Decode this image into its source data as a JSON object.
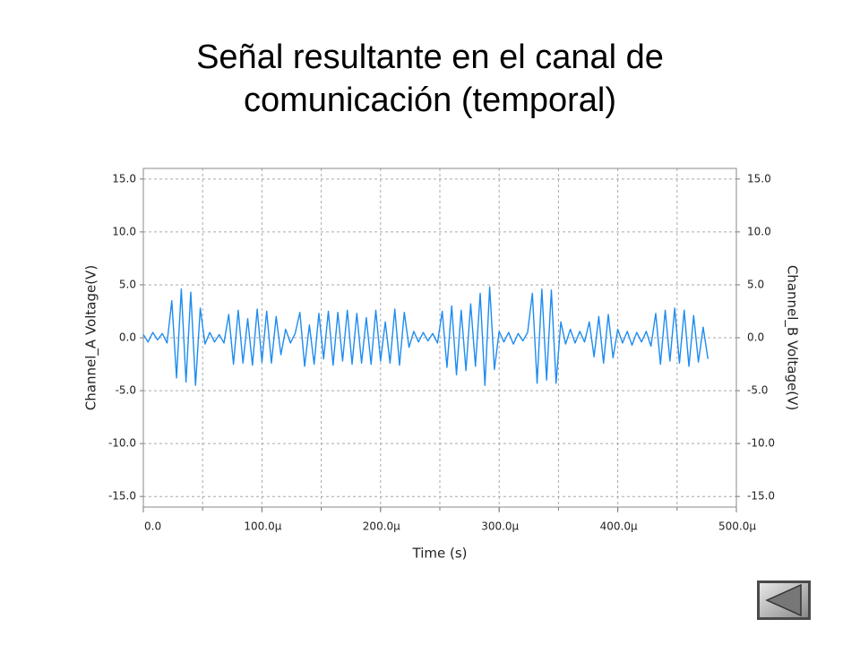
{
  "chart_data": {
    "type": "line",
    "title": [
      "Señal resultante en el canal de",
      "comunicación (temporal)"
    ],
    "x_label": "Time (s)",
    "y_label": "Channel_A Voltage(V)",
    "y2_label": "Channel_B Voltage(V)",
    "xlim": [
      0,
      0.0005
    ],
    "xticks": [
      {
        "value": 0,
        "label": "0.0"
      },
      {
        "value": 0.0001,
        "label": "100.0µ"
      },
      {
        "value": 0.0002,
        "label": "200.0µ"
      },
      {
        "value": 0.0003,
        "label": "300.0µ"
      },
      {
        "value": 0.0004,
        "label": "400.0µ"
      },
      {
        "value": 0.0005,
        "label": "500.0µ"
      }
    ],
    "xgrid": [
      5e-05,
      0.0001,
      0.00015,
      0.0002,
      0.00025,
      0.0003,
      0.00035,
      0.0004,
      0.00045
    ],
    "ylim": [
      -16,
      16
    ],
    "yticks": [
      {
        "value": 15,
        "label": "15.0"
      },
      {
        "value": 10,
        "label": "10.0"
      },
      {
        "value": 5,
        "label": "5.0"
      },
      {
        "value": 0,
        "label": "0.0"
      },
      {
        "value": -5,
        "label": "-5.0"
      },
      {
        "value": -10,
        "label": "-10.0"
      },
      {
        "value": -15,
        "label": "-15.0"
      }
    ],
    "y2lim": [
      -16,
      16
    ],
    "y2ticks": [
      {
        "value": 15,
        "label": "15.0"
      },
      {
        "value": 10,
        "label": "10.0"
      },
      {
        "value": 5,
        "label": "5.0"
      },
      {
        "value": 0,
        "label": "0.0"
      },
      {
        "value": -5,
        "label": "-5.0"
      },
      {
        "value": -10,
        "label": "-10.0"
      },
      {
        "value": -15,
        "label": "-15.0"
      }
    ],
    "grid": true,
    "x": [
      0.0,
      4e-06,
      8e-06,
      1.2e-05,
      1.6e-05,
      2e-05,
      2.4e-05,
      2.8e-05,
      3.2e-05,
      3.6e-05,
      4e-05,
      4.4e-05,
      4.8e-05,
      5.2e-05,
      5.6e-05,
      6e-05,
      6.4e-05,
      6.8e-05,
      7.2e-05,
      7.6e-05,
      8e-05,
      8.4e-05,
      8.8e-05,
      9.2e-05,
      9.6e-05,
      0.0001,
      0.000104,
      0.000108,
      0.000112,
      0.000116,
      0.00012,
      0.000124,
      0.000128,
      0.000132,
      0.000136,
      0.00014,
      0.000144,
      0.000148,
      0.000152,
      0.000156,
      0.00016,
      0.000164,
      0.000168,
      0.000172,
      0.000176,
      0.00018,
      0.000184,
      0.000188,
      0.000192,
      0.000196,
      0.0002,
      0.000204,
      0.000208,
      0.000212,
      0.000216,
      0.00022,
      0.000224,
      0.000228,
      0.000232,
      0.000236,
      0.00024,
      0.000244,
      0.000248,
      0.000252,
      0.000256,
      0.00026,
      0.000264,
      0.000268,
      0.000272,
      0.000276,
      0.00028,
      0.000284,
      0.000288,
      0.000292,
      0.000296,
      0.0003,
      0.000304,
      0.000308,
      0.000312,
      0.000316,
      0.00032,
      0.000324,
      0.000328,
      0.000332,
      0.000336,
      0.00034,
      0.000344,
      0.000348,
      0.000352,
      0.000356,
      0.00036,
      0.000364,
      0.000368,
      0.000372,
      0.000376,
      0.00038,
      0.000384,
      0.000388,
      0.000392,
      0.000396,
      0.0004,
      0.000404,
      0.000408,
      0.000412,
      0.000416,
      0.00042,
      0.000424,
      0.000428,
      0.000432,
      0.000436,
      0.00044,
      0.000444,
      0.000448,
      0.000452,
      0.000456,
      0.00046,
      0.000464,
      0.000468,
      0.000472,
      0.000476
    ],
    "series": [
      {
        "name": "Channel_A",
        "color": "#1e8cf0",
        "values": [
          0.3,
          -0.4,
          0.5,
          -0.2,
          0.4,
          -0.5,
          3.5,
          -3.8,
          4.6,
          -4.2,
          4.3,
          -4.5,
          2.8,
          -0.6,
          0.5,
          -0.4,
          0.3,
          -0.5,
          2.2,
          -2.5,
          2.6,
          -2.4,
          1.8,
          -2.6,
          2.7,
          -2.3,
          2.5,
          -2.4,
          2.0,
          -1.6,
          0.8,
          -0.5,
          0.4,
          2.4,
          -2.7,
          1.2,
          -2.5,
          2.3,
          -2.0,
          2.5,
          -2.6,
          2.4,
          -2.2,
          2.6,
          -2.5,
          2.3,
          -2.4,
          1.9,
          -2.5,
          2.6,
          -2.2,
          1.5,
          -2.4,
          2.7,
          -2.6,
          2.4,
          -0.9,
          0.6,
          -0.4,
          0.5,
          -0.3,
          0.4,
          -0.5,
          2.5,
          -2.8,
          3.0,
          -3.5,
          2.6,
          -3.1,
          3.2,
          -2.7,
          4.2,
          -4.5,
          4.8,
          -3.0,
          0.6,
          -0.4,
          0.5,
          -0.6,
          0.4,
          -0.3,
          0.5,
          4.2,
          -4.3,
          4.6,
          -4.0,
          4.5,
          -4.3,
          1.5,
          -0.6,
          0.8,
          -0.5,
          0.6,
          -0.4,
          1.5,
          -1.8,
          2.0,
          -2.4,
          2.2,
          -1.9,
          0.8,
          -0.5,
          0.6,
          -0.7,
          0.5,
          -0.4,
          0.6,
          -0.8,
          2.3,
          -2.5,
          2.6,
          -2.2,
          2.8,
          -2.4,
          2.6,
          -2.7,
          2.1,
          -2.3,
          1.0,
          -2.0
        ]
      }
    ]
  }
}
